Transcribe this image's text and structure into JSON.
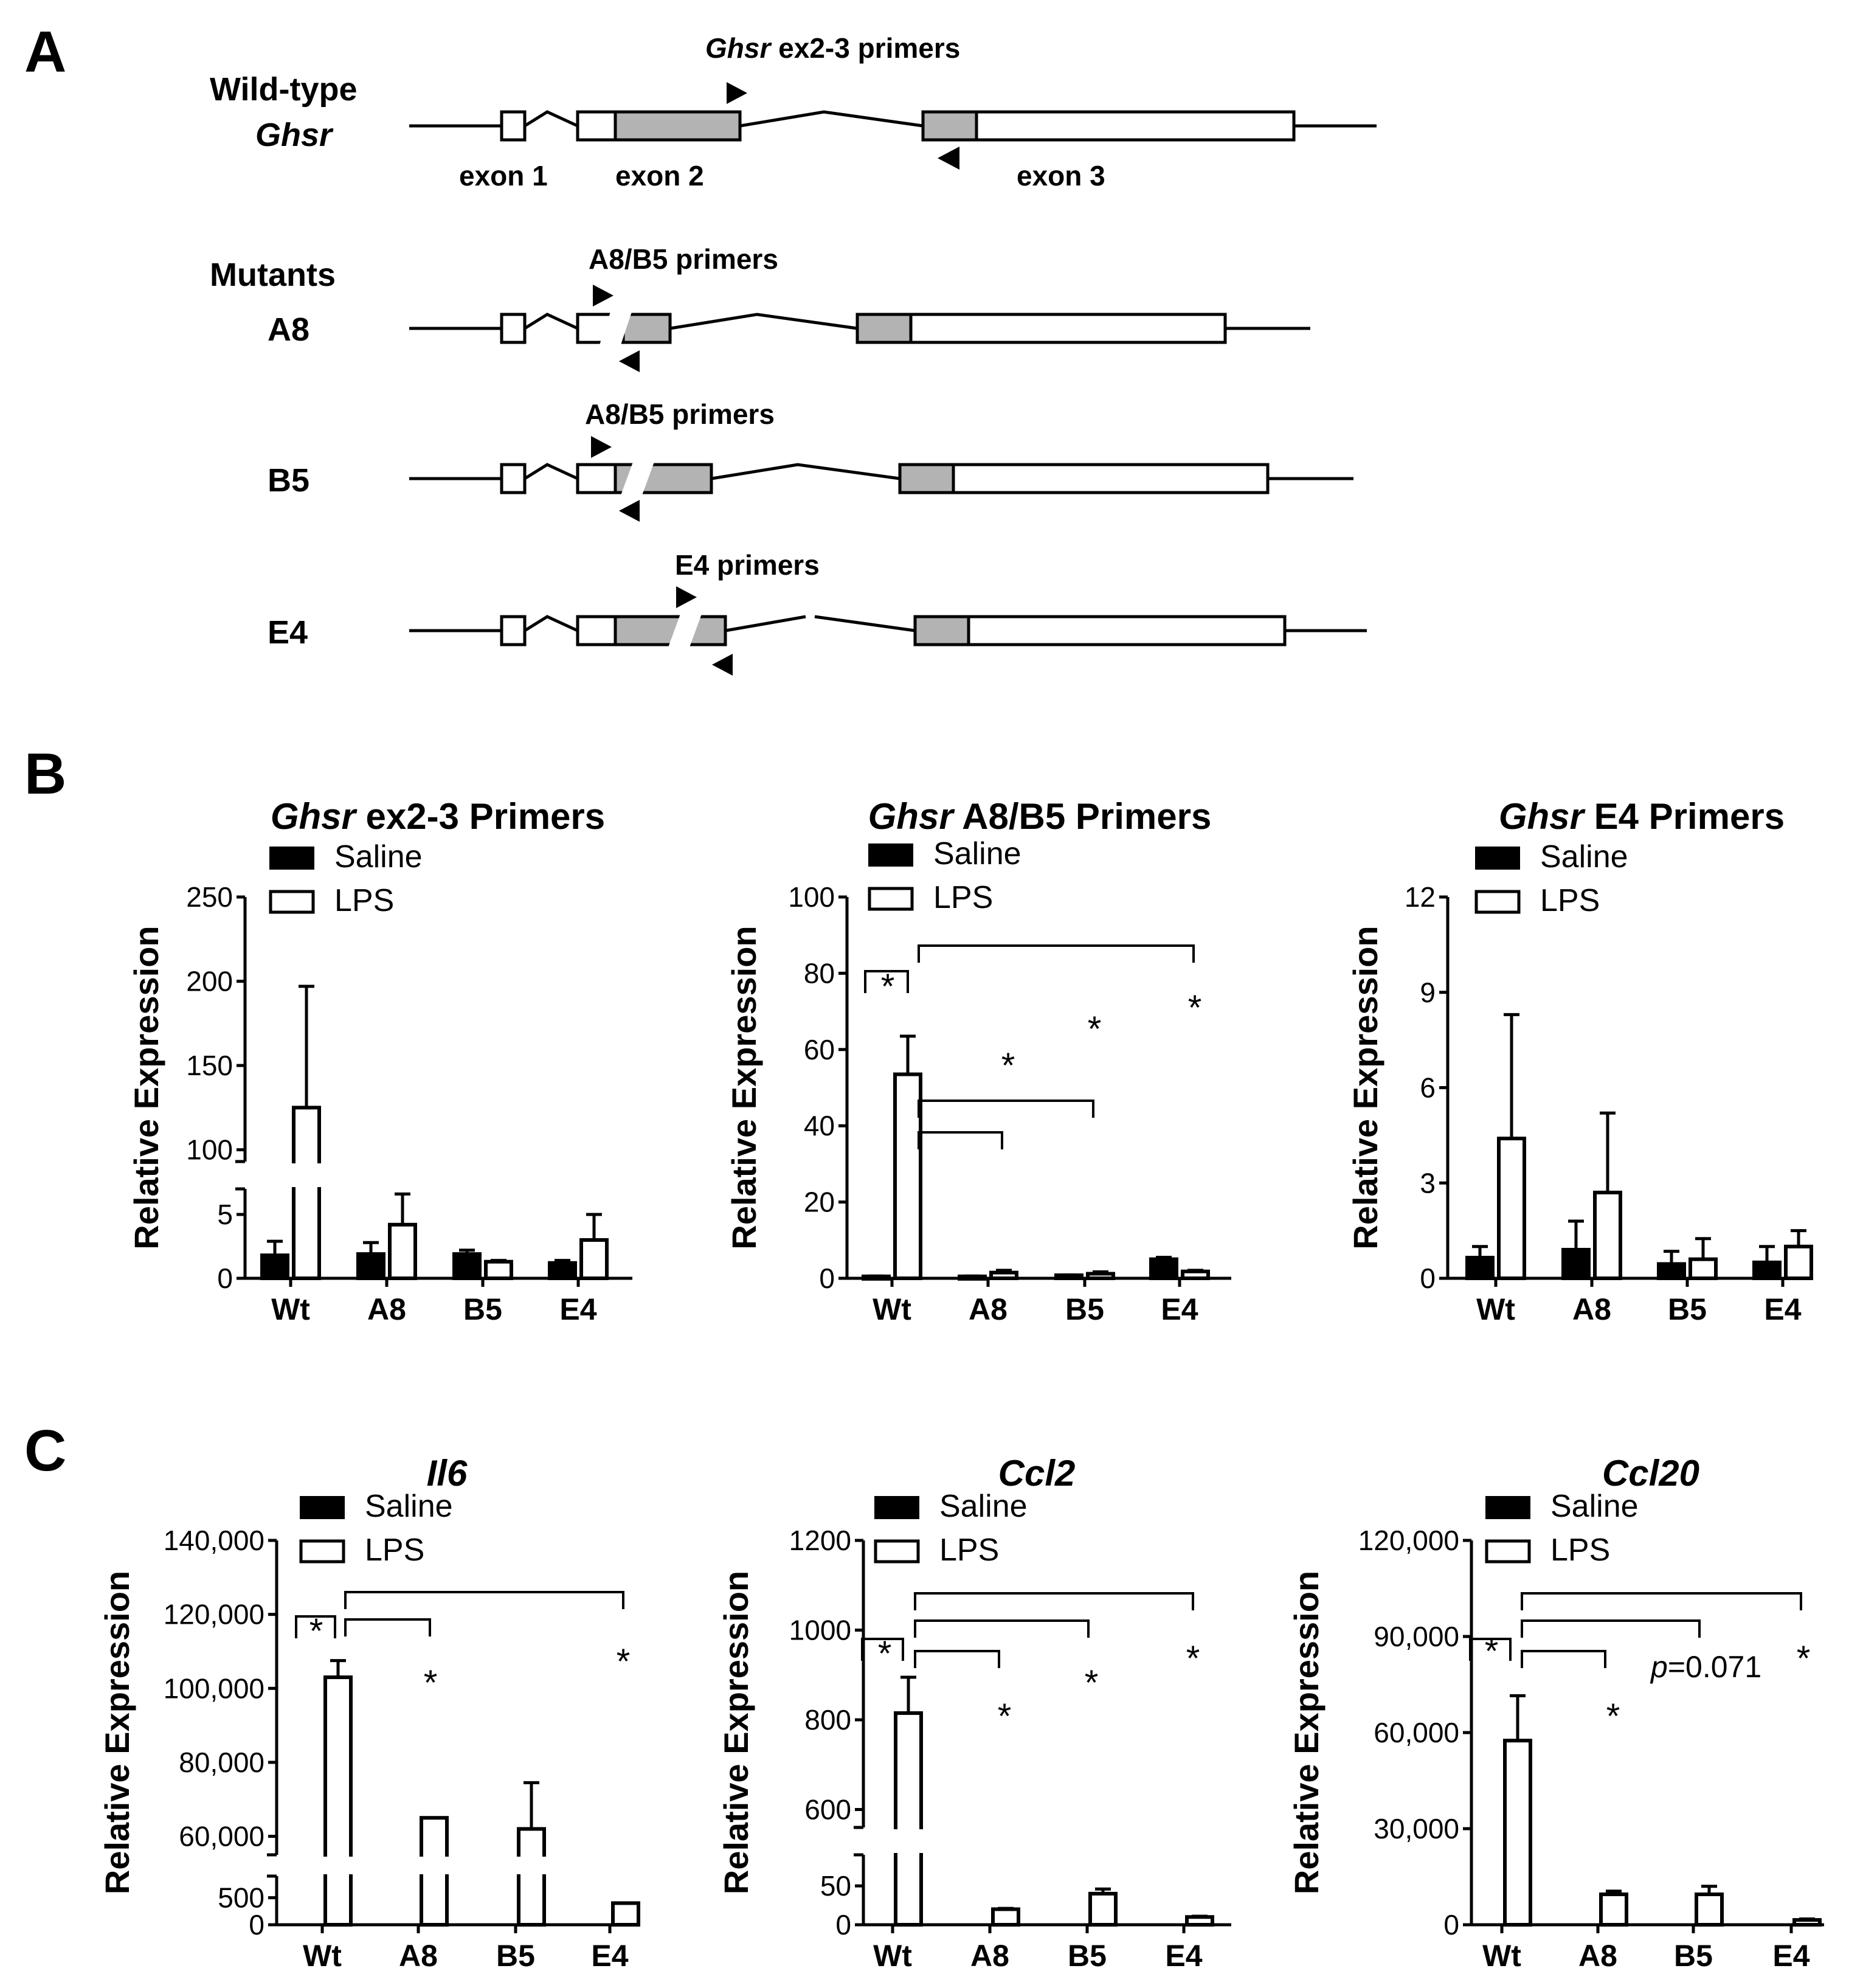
{
  "panel_a": {
    "letter": "A",
    "wild_type": {
      "line1": "Wild-type",
      "line2": "Ghsr",
      "exon_labels": [
        "exon 1",
        "exon 2",
        "exon 3"
      ],
      "primer_label_gene": "Ghsr",
      "primer_label_rest": " ex2-3 primers"
    },
    "mutants_heading": "Mutants",
    "mutants": [
      {
        "name": "A8",
        "primer_label": "A8/B5 primers"
      },
      {
        "name": "B5",
        "primer_label": "A8/B5 primers"
      },
      {
        "name": "E4",
        "primer_label": "E4 primers"
      }
    ]
  },
  "panel_b_letter": "B",
  "panel_c_letter": "C",
  "chart_data": [
    {
      "type": "bar",
      "panel": "B",
      "title_gene": "Ghsr",
      "title_rest": " ex2-3 Primers",
      "ylabel": "Relative Expression",
      "xlabel": "",
      "categories": [
        "Wt",
        "A8",
        "B5",
        "E4"
      ],
      "legend": [
        "Saline",
        "LPS"
      ],
      "series": [
        {
          "name": "Saline",
          "values": [
            1.8,
            1.9,
            1.9,
            1.2
          ],
          "errors": [
            1.1,
            0.9,
            0.3,
            0.2
          ]
        },
        {
          "name": "LPS",
          "values": [
            125,
            4.2,
            1.3,
            3.0
          ],
          "errors": [
            72,
            2.4,
            0.1,
            2.0
          ]
        }
      ],
      "y_axis_break": {
        "lower_range": [
          0,
          7
        ],
        "upper_range": [
          93,
          250
        ]
      },
      "yticks": [
        {
          "v": 0,
          "label": "0"
        },
        {
          "v": 5,
          "label": "5"
        },
        {
          "v": 100,
          "label": "100"
        },
        {
          "v": 150,
          "label": "150"
        },
        {
          "v": 200,
          "label": "200"
        },
        {
          "v": 250,
          "label": "250"
        }
      ],
      "significance": [],
      "annotations": []
    },
    {
      "type": "bar",
      "panel": "B",
      "title_gene": "Ghsr",
      "title_rest": " A8/B5 Primers",
      "ylabel": "Relative Expression",
      "xlabel": "",
      "categories": [
        "Wt",
        "A8",
        "B5",
        "E4"
      ],
      "legend": [
        "Saline",
        "LPS"
      ],
      "series": [
        {
          "name": "Saline",
          "values": [
            0.5,
            0.5,
            0.8,
            5.0
          ],
          "errors": [
            0.1,
            0.1,
            0.1,
            0.5
          ]
        },
        {
          "name": "LPS",
          "values": [
            53.5,
            1.5,
            1.2,
            1.8
          ],
          "errors": [
            10,
            0.6,
            0.5,
            0.3
          ]
        }
      ],
      "ylim": [
        0,
        100
      ],
      "yticks": [
        {
          "v": 0,
          "label": "0"
        },
        {
          "v": 20,
          "label": "20"
        },
        {
          "v": 40,
          "label": "40"
        },
        {
          "v": 60,
          "label": "60"
        },
        {
          "v": 80,
          "label": "80"
        },
        {
          "v": 100,
          "label": "100"
        }
      ],
      "significance": [
        {
          "label": "*",
          "compare": [
            "Wt Saline",
            "Wt LPS"
          ]
        },
        {
          "label": "*",
          "compare": [
            "Wt LPS",
            "A8 LPS"
          ]
        },
        {
          "label": "*",
          "compare": [
            "Wt LPS",
            "B5 LPS"
          ]
        },
        {
          "label": "*",
          "compare": [
            "Wt LPS",
            "E4 LPS"
          ]
        }
      ],
      "annotations": []
    },
    {
      "type": "bar",
      "panel": "B",
      "title_gene": "Ghsr",
      "title_rest": " E4 Primers",
      "ylabel": "Relative Expression",
      "xlabel": "",
      "categories": [
        "Wt",
        "A8",
        "B5",
        "E4"
      ],
      "legend": [
        "Saline",
        "LPS"
      ],
      "series": [
        {
          "name": "Saline",
          "values": [
            0.65,
            0.9,
            0.45,
            0.5
          ],
          "errors": [
            0.35,
            0.9,
            0.4,
            0.5
          ]
        },
        {
          "name": "LPS",
          "values": [
            4.4,
            2.7,
            0.6,
            1.0
          ],
          "errors": [
            3.9,
            2.5,
            0.65,
            0.5
          ]
        }
      ],
      "ylim": [
        0,
        12
      ],
      "yticks": [
        {
          "v": 0,
          "label": "0"
        },
        {
          "v": 3,
          "label": "3"
        },
        {
          "v": 6,
          "label": "6"
        },
        {
          "v": 9,
          "label": "9"
        },
        {
          "v": 12,
          "label": "12"
        }
      ],
      "significance": [],
      "annotations": []
    },
    {
      "type": "bar",
      "panel": "C",
      "title_gene": "Il6",
      "title_rest": "",
      "ylabel": "Relative Expression",
      "xlabel": "",
      "categories": [
        "Wt",
        "A8",
        "B5",
        "E4"
      ],
      "legend": [
        "Saline",
        "LPS"
      ],
      "series": [
        {
          "name": "Saline",
          "values": [
            0,
            0,
            0,
            0
          ],
          "errors": [
            0,
            0,
            0,
            0
          ]
        },
        {
          "name": "LPS",
          "values": [
            103000,
            65000,
            62000,
            400
          ],
          "errors": [
            4500,
            0,
            12500,
            0
          ]
        }
      ],
      "y_axis_break": {
        "lower_range": [
          0,
          900
        ],
        "upper_range": [
          55000,
          140000
        ]
      },
      "yticks": [
        {
          "v": 0,
          "label": "0"
        },
        {
          "v": 500,
          "label": "500"
        },
        {
          "v": 60000,
          "label": "60,000"
        },
        {
          "v": 80000,
          "label": "80,000"
        },
        {
          "v": 100000,
          "label": "100,000"
        },
        {
          "v": 120000,
          "label": "120,000"
        },
        {
          "v": 140000,
          "label": "140,000"
        }
      ],
      "significance": [
        {
          "label": "*",
          "compare": [
            "Wt Saline",
            "Wt LPS"
          ]
        },
        {
          "label": "*",
          "compare": [
            "Wt LPS",
            "A8 LPS"
          ]
        },
        {
          "label": "*",
          "compare": [
            "Wt LPS",
            "E4 LPS"
          ]
        }
      ],
      "annotations": []
    },
    {
      "type": "bar",
      "panel": "C",
      "title_gene": "Ccl2",
      "title_rest": "",
      "ylabel": "Relative Expression",
      "xlabel": "",
      "categories": [
        "Wt",
        "A8",
        "B5",
        "E4"
      ],
      "legend": [
        "Saline",
        "LPS"
      ],
      "series": [
        {
          "name": "Saline",
          "values": [
            0,
            0,
            0,
            0
          ],
          "errors": [
            0,
            0,
            0,
            0
          ]
        },
        {
          "name": "LPS",
          "values": [
            815,
            20,
            40,
            10
          ],
          "errors": [
            80,
            1,
            6,
            1
          ]
        }
      ],
      "y_axis_break": {
        "lower_range": [
          0,
          90
        ],
        "upper_range": [
          560,
          1200
        ]
      },
      "yticks": [
        {
          "v": 0,
          "label": "0"
        },
        {
          "v": 50,
          "label": "50"
        },
        {
          "v": 600,
          "label": "600"
        },
        {
          "v": 800,
          "label": "800"
        },
        {
          "v": 1000,
          "label": "1000"
        },
        {
          "v": 1200,
          "label": "1200"
        }
      ],
      "significance": [
        {
          "label": "*",
          "compare": [
            "Wt Saline",
            "Wt LPS"
          ]
        },
        {
          "label": "*",
          "compare": [
            "Wt LPS",
            "A8 LPS"
          ]
        },
        {
          "label": "*",
          "compare": [
            "Wt LPS",
            "B5 LPS"
          ]
        },
        {
          "label": "*",
          "compare": [
            "Wt LPS",
            "E4 LPS"
          ]
        }
      ],
      "annotations": []
    },
    {
      "type": "bar",
      "panel": "C",
      "title_gene": "Ccl20",
      "title_rest": "",
      "ylabel": "Relative Expression",
      "xlabel": "",
      "categories": [
        "Wt",
        "A8",
        "B5",
        "E4"
      ],
      "legend": [
        "Saline",
        "LPS"
      ],
      "series": [
        {
          "name": "Saline",
          "values": [
            0,
            0,
            0,
            0
          ],
          "errors": [
            0,
            0,
            0,
            0
          ]
        },
        {
          "name": "LPS",
          "values": [
            57500,
            9500,
            9500,
            1500
          ],
          "errors": [
            14000,
            1000,
            2500,
            300
          ]
        }
      ],
      "ylim": [
        0,
        120000
      ],
      "yticks": [
        {
          "v": 0,
          "label": "0"
        },
        {
          "v": 30000,
          "label": "30,000"
        },
        {
          "v": 60000,
          "label": "60,000"
        },
        {
          "v": 90000,
          "label": "90,000"
        },
        {
          "v": 120000,
          "label": "120,000"
        }
      ],
      "significance": [
        {
          "label": "*",
          "compare": [
            "Wt Saline",
            "Wt LPS"
          ]
        },
        {
          "label": "*",
          "compare": [
            "Wt LPS",
            "A8 LPS"
          ]
        },
        {
          "label": "p=0.071",
          "compare": [
            "Wt LPS",
            "B5 LPS"
          ]
        },
        {
          "label": "*",
          "compare": [
            "Wt LPS",
            "E4 LPS"
          ]
        }
      ],
      "annotations": []
    }
  ]
}
